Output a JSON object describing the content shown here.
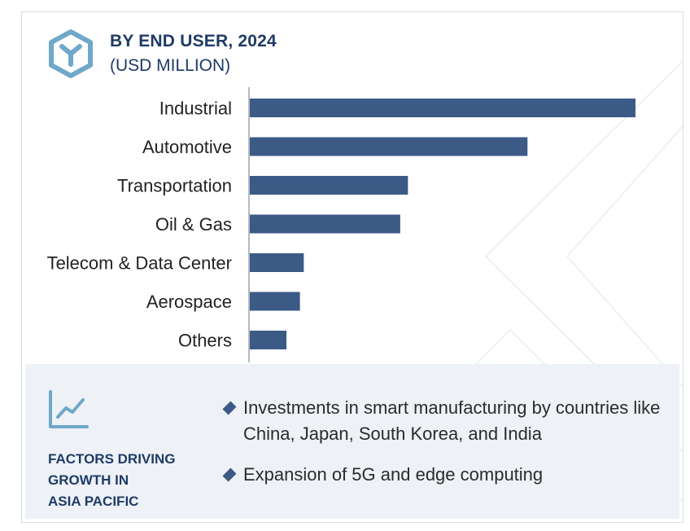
{
  "header": {
    "title": "BY END USER, 2024",
    "subtitle": "(USD MILLION)"
  },
  "chart_data": {
    "type": "bar",
    "orientation": "horizontal",
    "title": "BY END USER, 2024",
    "subtitle": "(USD MILLION)",
    "categories": [
      "Industrial",
      "Automotive",
      "Transportation",
      "Oil & Gas",
      "Telecom & Data Center",
      "Aerospace",
      "Others"
    ],
    "values": [
      100,
      72,
      41,
      39,
      14,
      13,
      9.5
    ],
    "units": "relative (no value axis shown)",
    "xlabel": "",
    "ylabel": "",
    "grid": false,
    "bar_color": "#3c5a86"
  },
  "factors": {
    "title_lines": [
      "FACTORS DRIVING",
      "GROWTH IN",
      "ASIA PACIFIC"
    ],
    "bullets": [
      "Investments in smart manufacturing by countries like China, Japan, South Korea, and India",
      "Expansion of 5G and edge computing"
    ]
  },
  "colors": {
    "accent": "#1f3b66",
    "bar": "#3c5a86",
    "icon": "#6fa8c9",
    "panel": "#eef1f6"
  },
  "icons": {
    "logo": "hexagon-logo-icon",
    "trend": "line-chart-icon",
    "bullet": "diamond-bullet-icon"
  }
}
